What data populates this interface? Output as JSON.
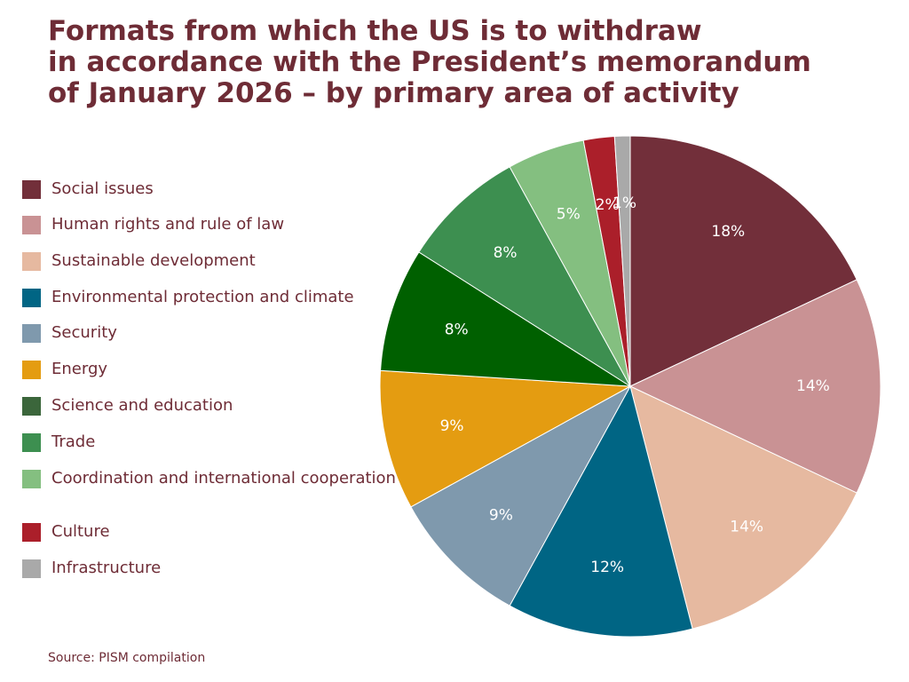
{
  "title": {
    "line1": "Formats from which the US is to withdraw",
    "line2": "in accordance with the President’s memorandum",
    "line3": "of January 2026 – by primary area of activity"
  },
  "source": "Source: PISM compilation",
  "chart_data": {
    "type": "pie",
    "start": "12 o'clock",
    "direction": "clockwise",
    "legend_position": "left",
    "slices": [
      {
        "label": "Social issues",
        "value": 18,
        "display": "18%",
        "color": "#722f3a",
        "text_color": "#ffffff"
      },
      {
        "label": "Human rights and rule of law",
        "value": 14,
        "display": "14%",
        "color": "#c99294",
        "text_color": "#ffffff"
      },
      {
        "label": "Sustainable development",
        "value": 14,
        "display": "14%",
        "color": "#e6b9a0",
        "text_color": "#ffffff"
      },
      {
        "label": "Environmental protection and climate",
        "value": 12,
        "display": "12%",
        "color": "#006584",
        "text_color": "#ffffff"
      },
      {
        "label": "Security",
        "value": 9,
        "display": "9%",
        "color": "#7f99ad",
        "text_color": "#ffffff"
      },
      {
        "label": "Energy",
        "value": 9,
        "display": "9%",
        "color": "#e49c11",
        "text_color": "#ffffff"
      },
      {
        "label": "Science and education",
        "value": 8,
        "display": "8%",
        "color": "#006000",
        "text_color": "#ffffff"
      },
      {
        "label": "Trade",
        "value": 8,
        "display": "8%",
        "color": "#3d8f50",
        "text_color": "#ffffff"
      },
      {
        "label": "Coordination and international cooperation",
        "value": 5,
        "display": "5%",
        "color": "#84bf80",
        "text_color": "#ffffff"
      },
      {
        "label": "Culture",
        "value": 2,
        "display": "2%",
        "color": "#ab1f2a",
        "text_color": "#ffffff"
      },
      {
        "label": "Infrastructure",
        "value": 1,
        "display": "1%",
        "color": "#a9a9a9",
        "text_color": "#ffffff"
      }
    ],
    "legend_swatch_colors": [
      "#722f3a",
      "#c99294",
      "#e6b9a0",
      "#006584",
      "#7f99ad",
      "#e49c11",
      "#3b663b",
      "#3d8f50",
      "#84bf80",
      "#ab1f2a",
      "#a9a9a9"
    ]
  }
}
